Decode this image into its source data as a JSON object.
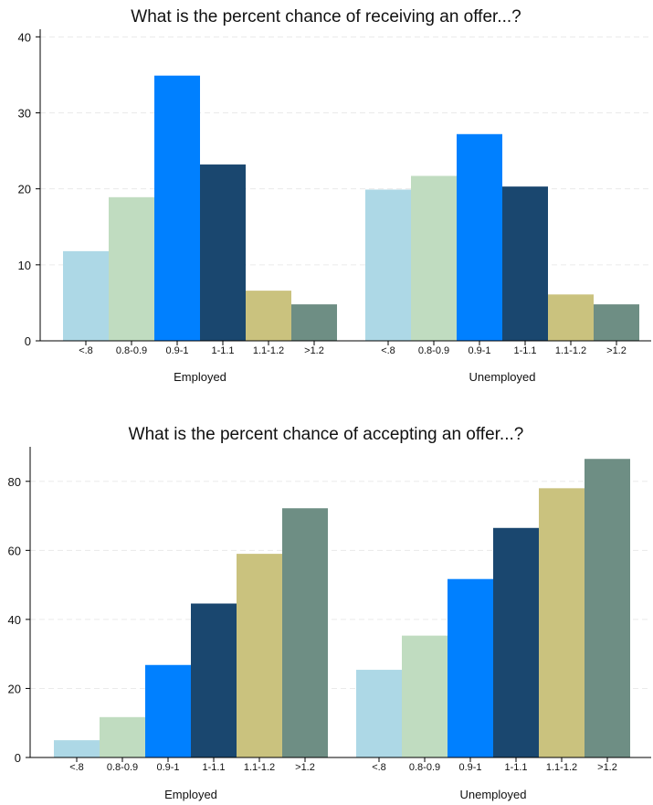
{
  "chart_data": [
    {
      "type": "bar",
      "title": "What is the percent chance of receiving an offer...?",
      "groups": [
        "Employed",
        "Unemployed"
      ],
      "categories": [
        "<.8",
        "0.8-0.9",
        "0.9-1",
        "1-1.1",
        "1.1-1.2",
        ">1.2"
      ],
      "series": [
        {
          "group": "Employed",
          "values": [
            11.8,
            18.9,
            34.9,
            23.2,
            6.6,
            4.8
          ]
        },
        {
          "group": "Unemployed",
          "values": [
            19.9,
            21.7,
            27.2,
            20.3,
            6.1,
            4.8
          ]
        }
      ],
      "colors": [
        "#add8e6",
        "#c0dcc0",
        "#0080ff",
        "#1a476f",
        "#cac27e",
        "#6e8e84"
      ],
      "yticks": [
        0,
        10,
        20,
        30,
        40
      ],
      "ylim": [
        0,
        41
      ],
      "grid": true,
      "xlabel": "",
      "ylabel": ""
    },
    {
      "type": "bar",
      "title": "What is the percent chance of accepting an offer...?",
      "groups": [
        "Employed",
        "Unemployed"
      ],
      "categories": [
        "<.8",
        "0.8-0.9",
        "0.9-1",
        "1-1.1",
        "1.1-1.2",
        ">1.2"
      ],
      "series": [
        {
          "group": "Employed",
          "values": [
            5.0,
            11.7,
            26.8,
            44.6,
            59.0,
            72.2
          ]
        },
        {
          "group": "Unemployed",
          "values": [
            25.4,
            35.3,
            51.7,
            66.5,
            78.0,
            86.5
          ]
        }
      ],
      "colors": [
        "#add8e6",
        "#c0dcc0",
        "#0080ff",
        "#1a476f",
        "#cac27e",
        "#6e8e84"
      ],
      "yticks": [
        0,
        20,
        40,
        60,
        80
      ],
      "ylim": [
        0,
        90
      ],
      "grid": true,
      "xlabel": "",
      "ylabel": ""
    }
  ]
}
